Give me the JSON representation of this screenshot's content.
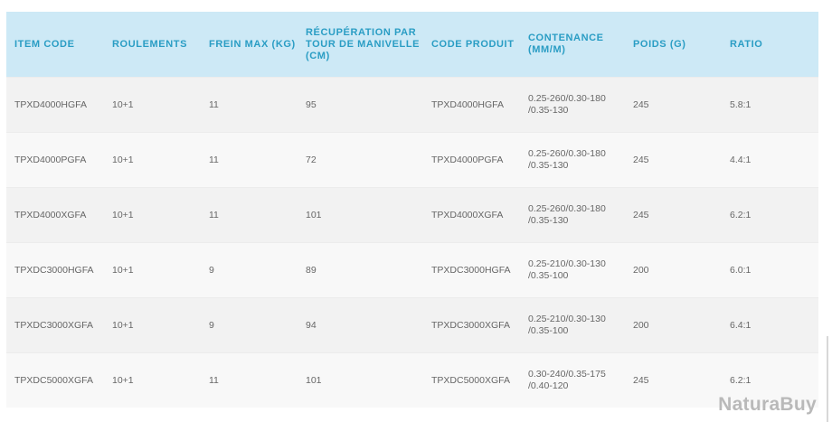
{
  "headers": [
    "ITEM CODE",
    "ROULEMENTS",
    "FREIN MAX (KG)",
    "RÉCUPÉRATION PAR TOUR DE MANIVELLE (CM)",
    "CODE PRODUIT",
    "CONTENANCE (MM/M)",
    "POIDS (G)",
    "RATIO"
  ],
  "rows": [
    [
      "TPXD4000HGFA",
      "10+1",
      "11",
      "95",
      "TPXD4000HGFA",
      "0.25-260/0.30-180 /0.35-130",
      "245",
      "5.8:1"
    ],
    [
      "TPXD4000PGFA",
      "10+1",
      "11",
      "72",
      "TPXD4000PGFA",
      "0.25-260/0.30-180 /0.35-130",
      "245",
      "4.4:1"
    ],
    [
      "TPXD4000XGFA",
      "10+1",
      "11",
      "101",
      "TPXD4000XGFA",
      "0.25-260/0.30-180 /0.35-130",
      "245",
      "6.2:1"
    ],
    [
      "TPXDC3000HGFA",
      "10+1",
      "9",
      "89",
      "TPXDC3000HGFA",
      "0.25-210/0.30-130 /0.35-100",
      "200",
      "6.0:1"
    ],
    [
      "TPXDC3000XGFA",
      "10+1",
      "9",
      "94",
      "TPXDC3000XGFA",
      "0.25-210/0.30-130 /0.35-100",
      "200",
      "6.4:1"
    ],
    [
      "TPXDC5000XGFA",
      "10+1",
      "11",
      "101",
      "TPXDC5000XGFA",
      "0.30-240/0.35-175 /0.40-120",
      "245",
      "6.2:1"
    ]
  ],
  "watermark": "NaturaBuy",
  "colors": {
    "header_bg": "#cde9f6",
    "header_text": "#2a9dc4"
  }
}
